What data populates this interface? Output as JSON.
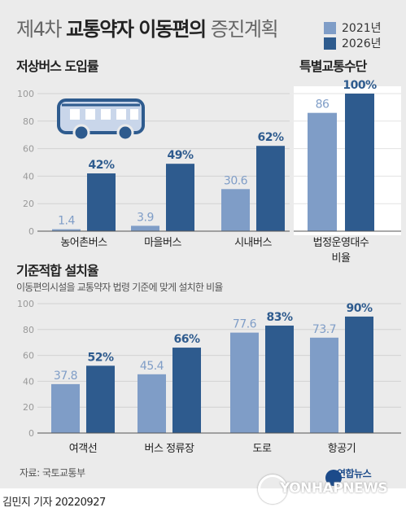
{
  "title": {
    "prefix": "제4차",
    "bold": "교통약자 이동편의",
    "suffix": "증진계획"
  },
  "legend": [
    {
      "label": "2021년",
      "color": "#7f9dc7"
    },
    {
      "label": "2026년",
      "color": "#2e5b8e"
    }
  ],
  "section1": {
    "title": "저상버스 도입률"
  },
  "section2": {
    "title": "특별교통수단"
  },
  "section3": {
    "title": "기준적합 설치율",
    "subtitle": "이동편의시설을 교통약자 법령 기준에 맞게 설치한 비율"
  },
  "source": "자료: 국토교통부",
  "byline": "김민지 기자  20220927",
  "logo": {
    "korean": "연합뉴스",
    "english": "YONHAPNEWS"
  },
  "icons": {
    "bus": "bus-icon"
  },
  "chart_data": [
    {
      "type": "bar",
      "title": "저상버스 도입률",
      "categories": [
        "농어촌버스",
        "마을버스",
        "시내버스"
      ],
      "series": [
        {
          "name": "2021년",
          "values": [
            1.4,
            3.9,
            30.6
          ],
          "labels": [
            "1.4",
            "3.9",
            "30.6"
          ]
        },
        {
          "name": "2026년",
          "values": [
            42,
            49,
            62
          ],
          "labels": [
            "42%",
            "49%",
            "62%"
          ]
        }
      ],
      "ylim": [
        0,
        100
      ],
      "yticks": [
        0,
        20,
        40,
        60,
        80,
        100
      ],
      "grid": true
    },
    {
      "type": "bar",
      "title": "특별교통수단",
      "categories": [
        "법정운영대수\n비율"
      ],
      "series": [
        {
          "name": "2021년",
          "values": [
            86
          ],
          "labels": [
            "86"
          ]
        },
        {
          "name": "2026년",
          "values": [
            100
          ],
          "labels": [
            "100%"
          ]
        }
      ],
      "ylim": [
        0,
        100
      ],
      "grid": true
    },
    {
      "type": "bar",
      "title": "기준적합 설치율",
      "categories": [
        "여객선",
        "버스 정류장",
        "도로",
        "항공기"
      ],
      "series": [
        {
          "name": "2021년",
          "values": [
            37.8,
            45.4,
            77.6,
            73.7
          ],
          "labels": [
            "37.8",
            "45.4",
            "77.6",
            "73.7"
          ]
        },
        {
          "name": "2026년",
          "values": [
            52,
            66,
            83,
            90
          ],
          "labels": [
            "52%",
            "66%",
            "83%",
            "90%"
          ]
        }
      ],
      "ylim": [
        0,
        100
      ],
      "yticks": [
        0,
        20,
        40,
        60,
        80,
        100
      ],
      "grid": true
    }
  ]
}
